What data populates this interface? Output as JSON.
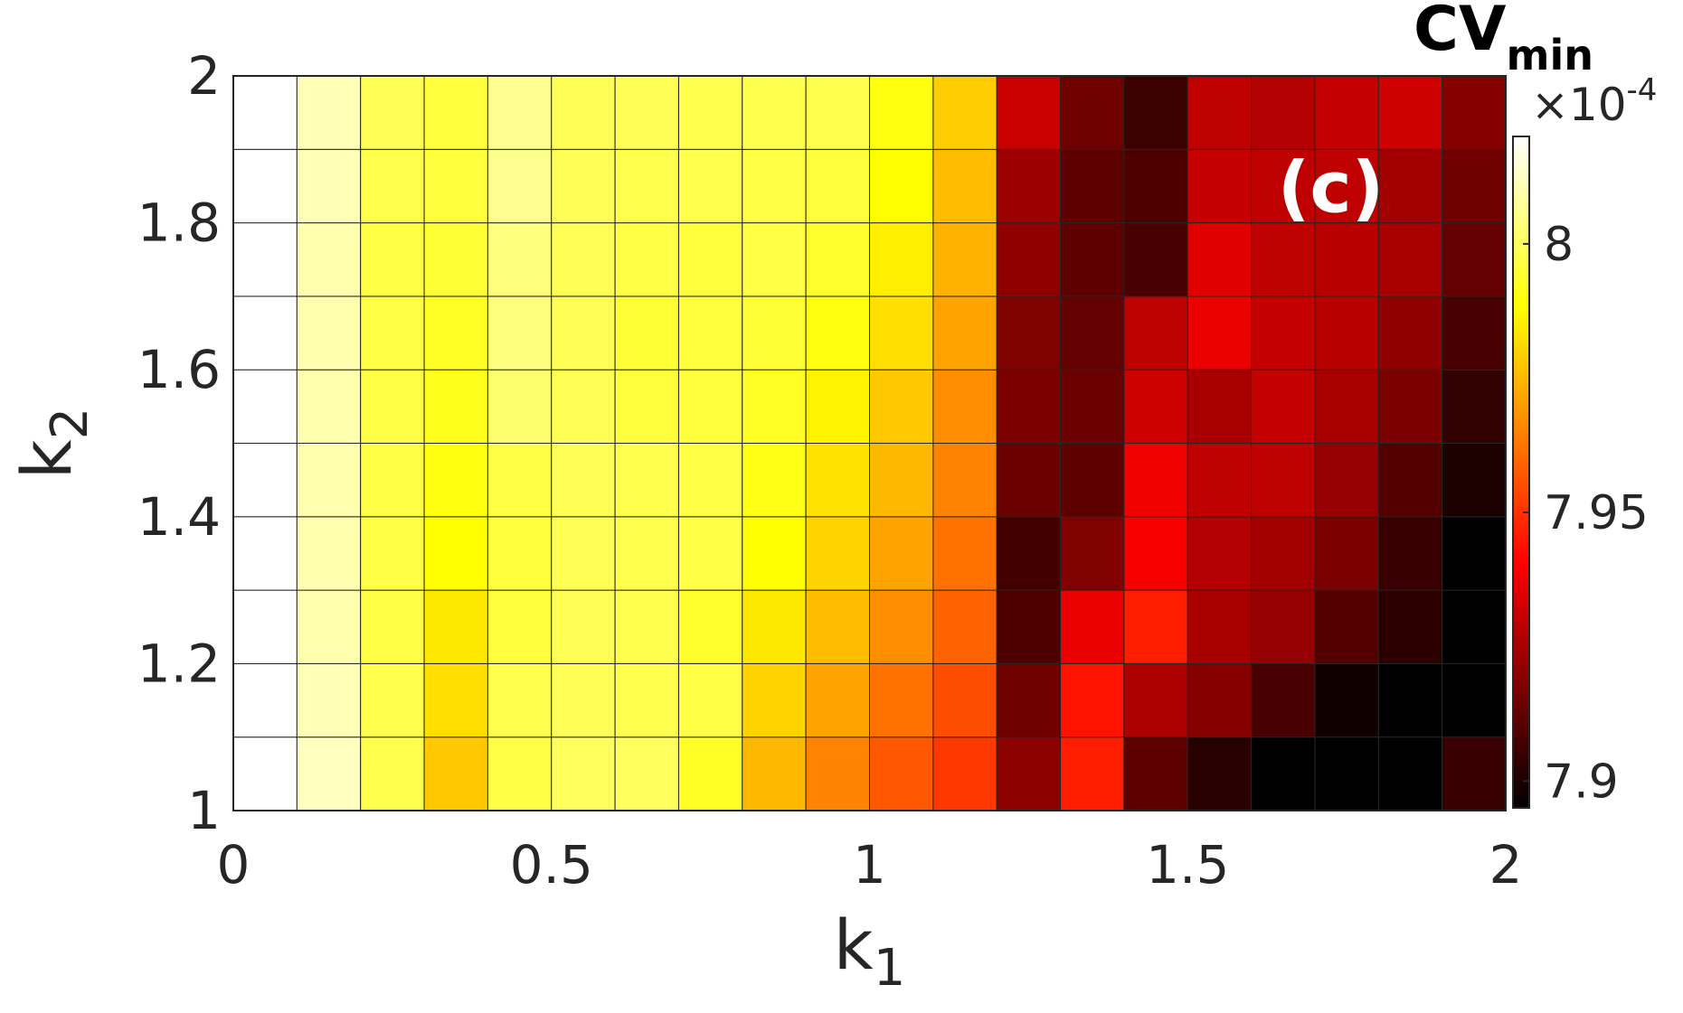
{
  "chart_data": {
    "type": "heatmap",
    "panel_label": "(c)",
    "x_label": {
      "base": "k",
      "sub": "1"
    },
    "y_label": {
      "base": "k",
      "sub": "2"
    },
    "x_edges": [
      0,
      0.1,
      0.2,
      0.3,
      0.4,
      0.5,
      0.6,
      0.7,
      0.8,
      0.9,
      1.0,
      1.1,
      1.2,
      1.3,
      1.4,
      1.5,
      1.6,
      1.7,
      1.8,
      1.9,
      2.0
    ],
    "y_edges": [
      1.0,
      1.1,
      1.2,
      1.3,
      1.4,
      1.5,
      1.6,
      1.7,
      1.8,
      1.9,
      2.0
    ],
    "xlim": [
      0,
      2
    ],
    "ylim": [
      1,
      2
    ],
    "x_ticks": [
      {
        "v": 0,
        "label": "0"
      },
      {
        "v": 0.5,
        "label": "0.5"
      },
      {
        "v": 1,
        "label": "1"
      },
      {
        "v": 1.5,
        "label": "1.5"
      },
      {
        "v": 2,
        "label": "2"
      }
    ],
    "y_ticks": [
      {
        "v": 1,
        "label": "1"
      },
      {
        "v": 1.2,
        "label": "1.2"
      },
      {
        "v": 1.4,
        "label": "1.4"
      },
      {
        "v": 1.6,
        "label": "1.6"
      },
      {
        "v": 1.8,
        "label": "1.8"
      },
      {
        "v": 2,
        "label": "2"
      }
    ],
    "colormap": "hot",
    "values_note_rows_bottom_to_top": "values are CV_min x 1e4",
    "values": [
      [
        8.02,
        8.012,
        7.998,
        7.978,
        7.997,
        8.0,
        8.0,
        7.993,
        7.975,
        7.965,
        7.957,
        7.951,
        7.92,
        7.946,
        7.912,
        7.902,
        7.895,
        7.89,
        7.893,
        7.905
      ],
      [
        8.02,
        8.011,
        7.998,
        7.982,
        7.998,
        7.999,
        7.998,
        7.997,
        7.98,
        7.971,
        7.962,
        7.955,
        7.915,
        7.944,
        7.926,
        7.919,
        7.908,
        7.898,
        7.894,
        7.895
      ],
      [
        8.02,
        8.01,
        7.997,
        7.984,
        7.996,
        7.999,
        7.998,
        7.994,
        7.984,
        7.976,
        7.967,
        7.959,
        7.909,
        7.937,
        7.946,
        7.925,
        7.922,
        7.91,
        7.903,
        7.891
      ],
      [
        8.02,
        8.01,
        7.997,
        7.988,
        7.996,
        7.999,
        7.998,
        7.997,
        7.988,
        7.98,
        7.971,
        7.962,
        7.907,
        7.918,
        7.939,
        7.927,
        7.924,
        7.917,
        7.905,
        7.895
      ],
      [
        8.02,
        8.01,
        7.997,
        7.99,
        7.997,
        7.999,
        7.998,
        7.997,
        7.991,
        7.983,
        7.975,
        7.965,
        7.914,
        7.912,
        7.938,
        7.929,
        7.929,
        7.922,
        7.91,
        7.9
      ],
      [
        8.02,
        8.01,
        7.997,
        7.992,
        8.002,
        7.999,
        7.996,
        7.996,
        7.993,
        7.986,
        7.978,
        7.967,
        7.917,
        7.914,
        7.932,
        7.925,
        7.93,
        7.925,
        7.917,
        7.904
      ],
      [
        8.02,
        8.01,
        7.997,
        7.993,
        8.004,
        7.999,
        7.995,
        7.996,
        7.995,
        7.99,
        7.982,
        7.971,
        7.918,
        7.913,
        7.929,
        7.937,
        7.93,
        7.928,
        7.921,
        7.908
      ],
      [
        8.02,
        8.01,
        7.997,
        7.995,
        8.004,
        7.999,
        7.997,
        7.996,
        7.997,
        7.994,
        7.985,
        7.974,
        7.921,
        7.912,
        7.908,
        7.935,
        7.929,
        7.928,
        7.925,
        7.913
      ],
      [
        8.02,
        8.011,
        7.998,
        7.996,
        8.006,
        7.999,
        7.998,
        7.998,
        7.997,
        7.996,
        7.988,
        7.976,
        7.923,
        7.912,
        7.909,
        7.93,
        7.929,
        7.929,
        7.924,
        7.915
      ],
      [
        8.02,
        8.011,
        7.999,
        7.996,
        8.006,
        7.999,
        7.999,
        7.998,
        7.998,
        7.998,
        7.99,
        7.979,
        7.931,
        7.915,
        7.906,
        7.929,
        7.927,
        7.93,
        7.932,
        7.919
      ]
    ],
    "colorbar": {
      "range": [
        7.895,
        8.02
      ],
      "ticks": [
        {
          "v": 7.9,
          "label": "7.9"
        },
        {
          "v": 7.95,
          "label": "7.95"
        },
        {
          "v": 8.0,
          "label": "8"
        }
      ],
      "title": {
        "base": "CV",
        "sub": "min"
      },
      "multiplier": {
        "base": "×10",
        "exp": "-4"
      }
    }
  }
}
